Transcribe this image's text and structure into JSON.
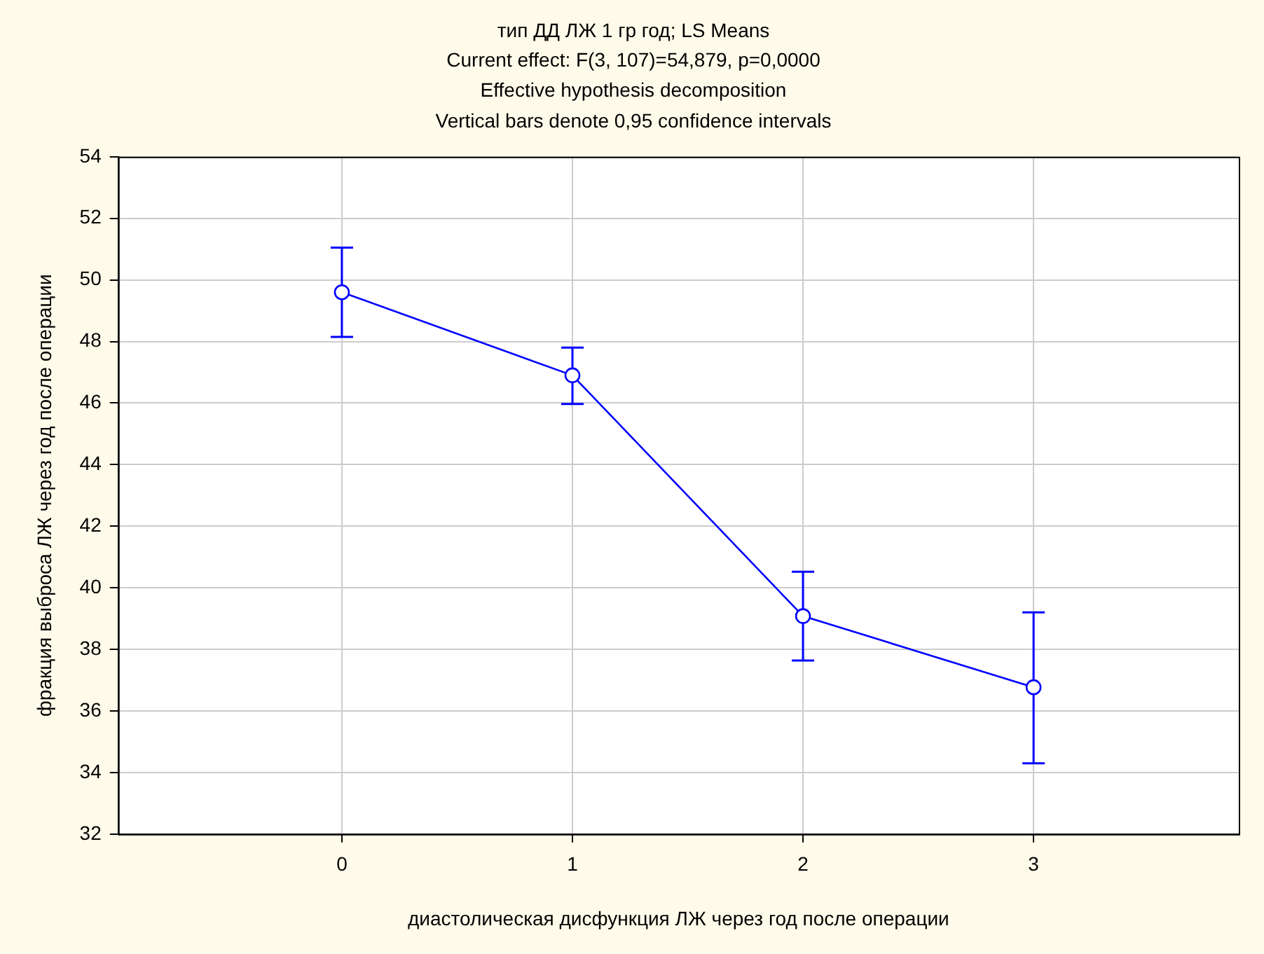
{
  "chart_data": {
    "type": "line",
    "title": "тип ДД ЛЖ 1 гр год; LS Means",
    "subtitle": "Current effect: F(3, 107)=54,879, p=0,0000",
    "annotations": [
      "Effective hypothesis decomposition",
      "Vertical bars denote 0,95 confidence intervals"
    ],
    "xlabel": "диастолическая дисфункция ЛЖ через год после операции",
    "ylabel": "фракция выброса ЛЖ через год после операции",
    "x": [
      0,
      1,
      2,
      3
    ],
    "series": [
      {
        "color": "#0000ff",
        "values": [
          49.6,
          46.9,
          39.08,
          36.77
        ],
        "errors": [
          [
            48.15,
            51.05
          ],
          [
            45.97,
            47.8
          ],
          [
            37.64,
            40.52
          ],
          [
            34.3,
            39.2
          ]
        ]
      }
    ],
    "xlim": [
      -0.97,
      3.89
    ],
    "xticks": [
      0,
      1,
      2,
      3
    ],
    "ylim": [
      32,
      54
    ],
    "yticks": [
      32,
      34,
      36,
      38,
      40,
      42,
      44,
      46,
      48,
      50,
      52,
      54
    ],
    "grid": true,
    "legend": false,
    "marker": "circle",
    "line_style": "solid"
  }
}
